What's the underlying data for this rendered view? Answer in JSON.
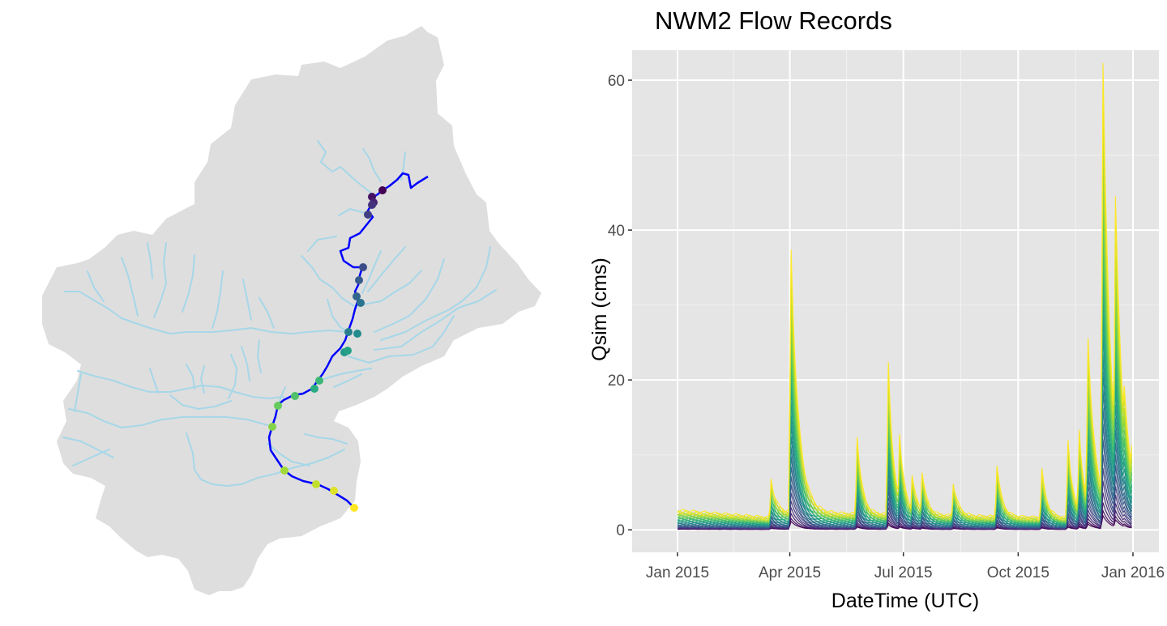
{
  "colors": {
    "panel_background": "#e5e5e5",
    "grid_major": "#ffffff",
    "watershed_fill": "#dedede",
    "tributaries": "#a6d7e8",
    "main_channel": "#0000ff",
    "viridis": [
      "#440154",
      "#472d7b",
      "#3b528b",
      "#2c728e",
      "#21918c",
      "#28ae80",
      "#5ec962",
      "#addc30",
      "#fde725"
    ]
  },
  "map": {
    "description_icon": "watershed-map",
    "gauge_count": 26
  },
  "chart_data": {
    "type": "line",
    "title": "NWM2 Flow Records",
    "xlabel": "DateTime (UTC)",
    "ylabel": "Qsim (cms)",
    "xlim": [
      "2015-01-01",
      "2016-01-10"
    ],
    "ylim": [
      -3,
      64
    ],
    "x_ticks": [
      "Jan 2015",
      "Apr 2015",
      "Jul 2015",
      "Oct 2015",
      "Jan 2016"
    ],
    "x_tick_dates": [
      "2015-01-01",
      "2015-04-01",
      "2015-07-01",
      "2015-10-01",
      "2016-01-01"
    ],
    "y_ticks": [
      0,
      20,
      40,
      60
    ],
    "grid": true,
    "legend": "none",
    "series_count": 26,
    "event_days": [
      75,
      92,
      108,
      145,
      170,
      179,
      189,
      197,
      222,
      257,
      270,
      285,
      300,
      309,
      318,
      324,
      330,
      342,
      352,
      359
    ],
    "peaks_largest_series": {
      "x": [
        "2015-01-01",
        "2015-03-17",
        "2015-04-02",
        "2015-04-08",
        "2015-05-25",
        "2015-06-19",
        "2015-06-28",
        "2015-07-08",
        "2015-07-16",
        "2015-08-10",
        "2015-09-14",
        "2015-10-20",
        "2015-11-10",
        "2015-11-19",
        "2015-11-26",
        "2015-12-08",
        "2015-12-18",
        "2015-12-25",
        "2015-12-31"
      ],
      "y": [
        2.2,
        4.5,
        35,
        9,
        10.5,
        20.5,
        11,
        5.5,
        6,
        4.5,
        7,
        6.5,
        10.5,
        12,
        24,
        61,
        43,
        18,
        10
      ]
    }
  }
}
